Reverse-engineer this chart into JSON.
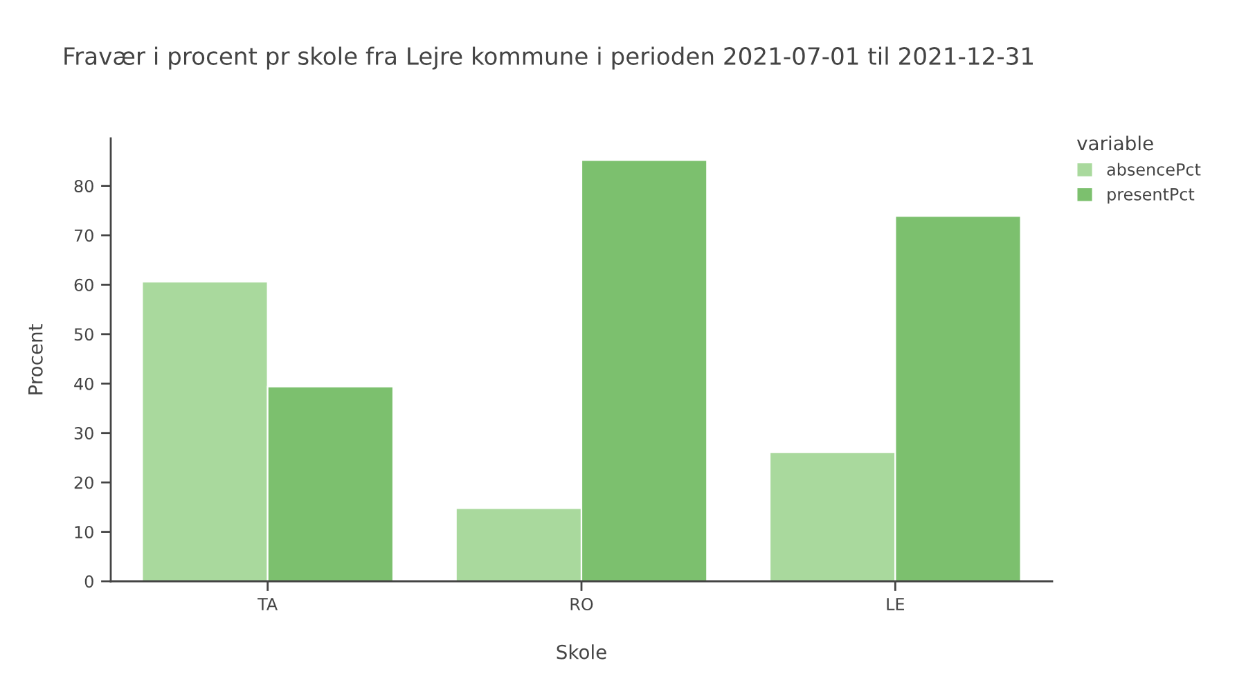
{
  "chart_data": {
    "type": "bar",
    "title": "Fravær i procent pr skole fra Lejre kommune i perioden 2021-07-01 til 2021-12-31",
    "xlabel": "Skole",
    "ylabel": "Procent",
    "legend_title": "variable",
    "legend": "top right",
    "categories": [
      "TA",
      "RO",
      "LE"
    ],
    "series": [
      {
        "name": "absencePct",
        "color": "#a9d99d",
        "values": [
          60.6,
          14.8,
          26.1
        ]
      },
      {
        "name": "presentPct",
        "color": "#7cc06e",
        "values": [
          39.4,
          85.2,
          73.9
        ]
      }
    ],
    "ylim": [
      0,
      89.6
    ],
    "yticks": [
      0,
      10,
      20,
      30,
      40,
      50,
      60,
      70,
      80
    ]
  }
}
